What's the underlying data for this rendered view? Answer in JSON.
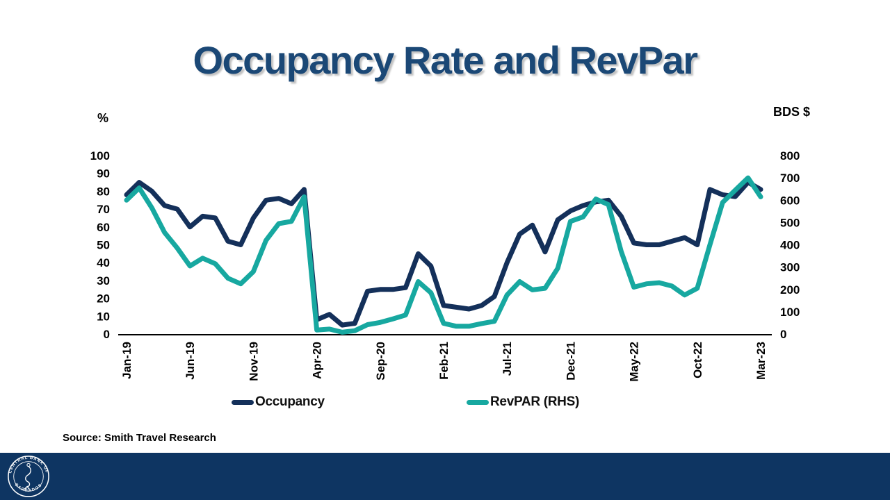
{
  "title": "Occupancy Rate and RevPar",
  "axes": {
    "left_unit": "%",
    "right_unit": "BDS $"
  },
  "source_note": "Source: Smith Travel Research",
  "seal": {
    "text_top": "CENTRAL BANK OF",
    "text_bottom": "BARBADOS"
  },
  "colors": {
    "title": "#1B4876",
    "occupancy_line": "#14305A",
    "revpar_line": "#17A8A0",
    "footer_bar": "#0E3562",
    "axis_text": "#000000"
  },
  "chart_data": {
    "type": "line",
    "title": "Occupancy Rate and RevPar",
    "x": [
      "Jan-19",
      "Feb-19",
      "Mar-19",
      "Apr-19",
      "May-19",
      "Jun-19",
      "Jul-19",
      "Aug-19",
      "Sep-19",
      "Oct-19",
      "Nov-19",
      "Dec-19",
      "Jan-20",
      "Feb-20",
      "Mar-20",
      "Apr-20",
      "May-20",
      "Jun-20",
      "Jul-20",
      "Aug-20",
      "Sep-20",
      "Oct-20",
      "Nov-20",
      "Dec-20",
      "Jan-21",
      "Feb-21",
      "Mar-21",
      "Apr-21",
      "May-21",
      "Jun-21",
      "Jul-21",
      "Aug-21",
      "Sep-21",
      "Oct-21",
      "Nov-21",
      "Dec-21",
      "Jan-22",
      "Feb-22",
      "Mar-22",
      "Apr-22",
      "May-22",
      "Jun-22",
      "Jul-22",
      "Aug-22",
      "Sep-22",
      "Oct-22",
      "Nov-22",
      "Dec-22",
      "Jan-23",
      "Feb-23",
      "Mar-23"
    ],
    "x_tick_labels": [
      "Jan-19",
      "Jun-19",
      "Nov-19",
      "Apr-20",
      "Sep-20",
      "Feb-21",
      "Jul-21",
      "Dec-21",
      "May-22",
      "Oct-22",
      "Mar-23"
    ],
    "series": [
      {
        "name": "Occupancy",
        "axis": "left",
        "color": "#14305A",
        "values": [
          78,
          85,
          80,
          72,
          70,
          60,
          66,
          65,
          52,
          50,
          65,
          75,
          76,
          73,
          81,
          8,
          11,
          5,
          6,
          24,
          25,
          25,
          26,
          45,
          38,
          16,
          15,
          14,
          16,
          21,
          40,
          56,
          61,
          46,
          64,
          69,
          72,
          74,
          75,
          66,
          51,
          50,
          50,
          52,
          54,
          50,
          81,
          78,
          77,
          85,
          81
        ]
      },
      {
        "name": "RevPAR (RHS)",
        "axis": "right",
        "color": "#17A8A0",
        "values": [
          600,
          655,
          565,
          455,
          385,
          305,
          340,
          315,
          250,
          225,
          280,
          420,
          495,
          505,
          615,
          18,
          22,
          8,
          15,
          42,
          52,
          68,
          85,
          235,
          185,
          48,
          35,
          35,
          47,
          57,
          175,
          235,
          198,
          205,
          295,
          505,
          525,
          605,
          580,
          370,
          210,
          225,
          230,
          215,
          175,
          205,
          400,
          590,
          645,
          700,
          615
        ]
      }
    ],
    "left_axis": {
      "label": "%",
      "ticks": [
        100,
        90,
        80,
        70,
        60,
        50,
        40,
        30,
        20,
        10,
        0
      ],
      "range": [
        0,
        100
      ]
    },
    "right_axis": {
      "label": "BDS $",
      "ticks": [
        800,
        700,
        600,
        500,
        400,
        300,
        200,
        100,
        0
      ],
      "range": [
        0,
        800
      ]
    },
    "grid": false,
    "legend_position": "bottom"
  }
}
